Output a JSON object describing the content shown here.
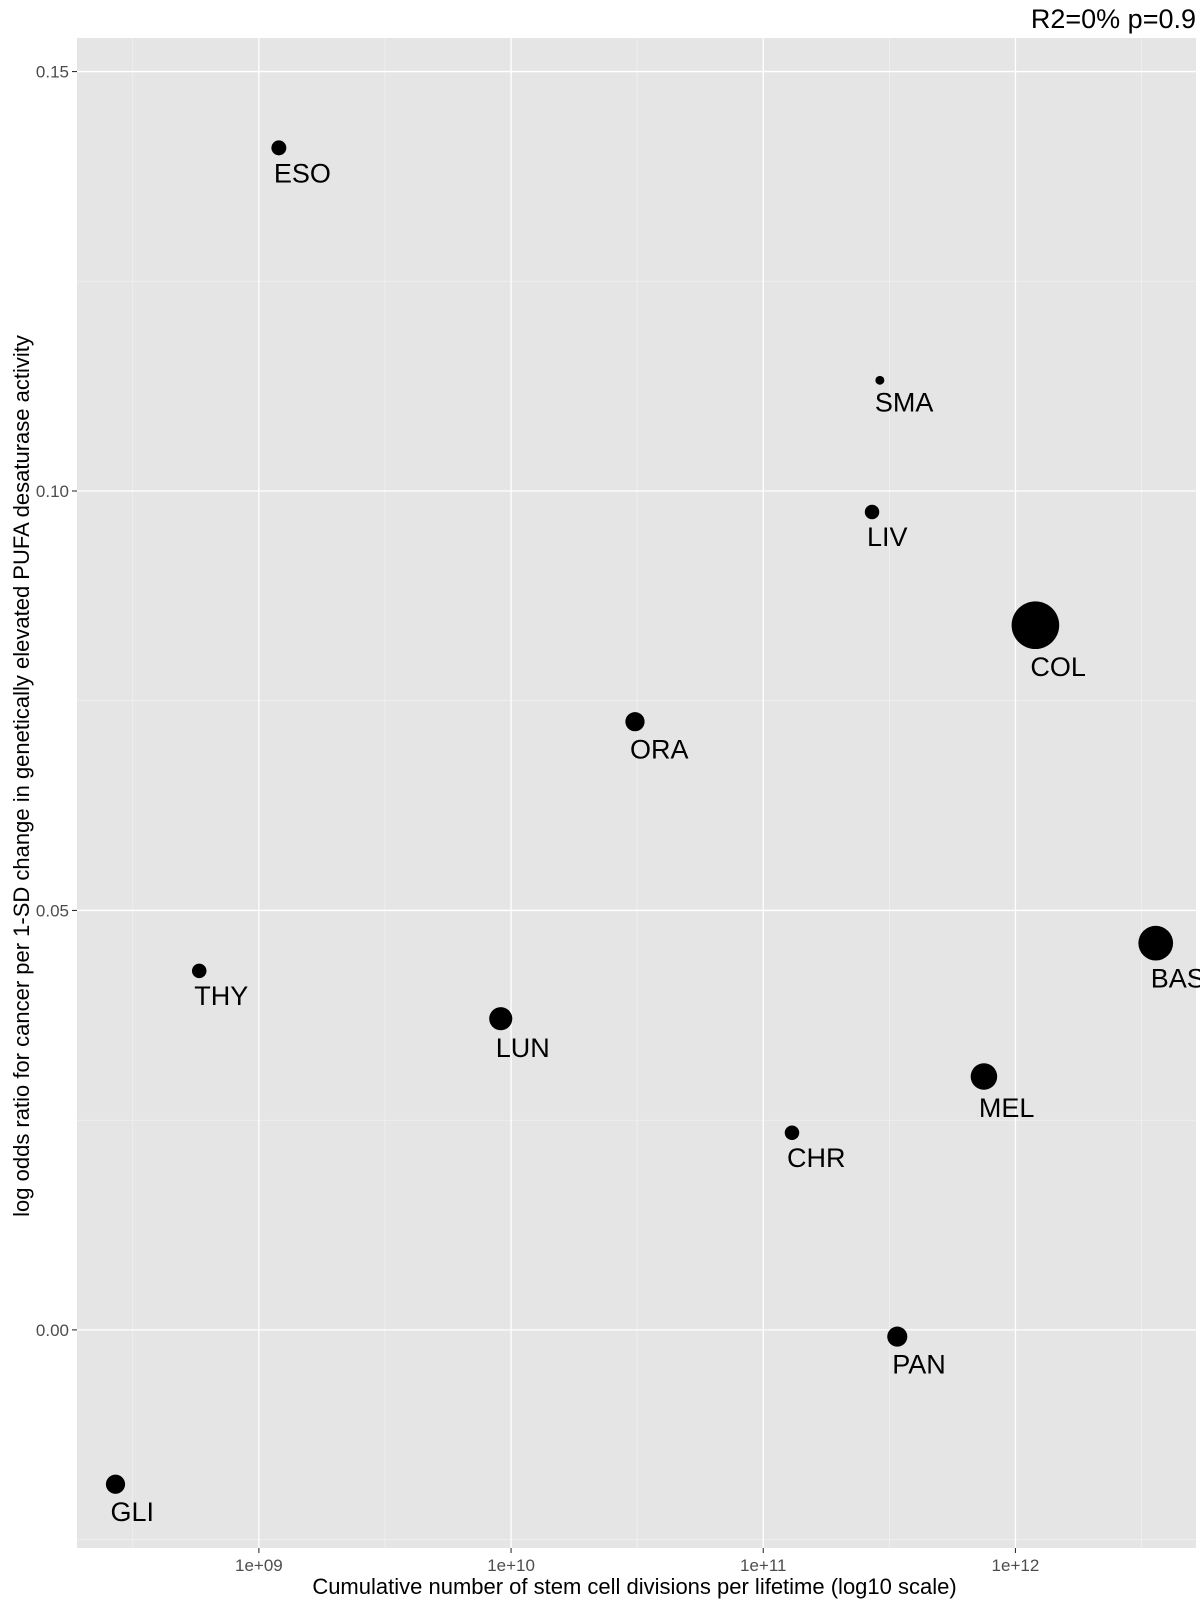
{
  "chart_data": {
    "type": "scatter",
    "title": "",
    "annotation": "R2=0% p=0.9",
    "xlabel": "Cumulative number of stem cell divisions per lifetime (log10 scale)",
    "ylabel": "log odds ratio for cancer per 1-SD change in genetically elevated PUFA desaturase activity",
    "x_scale": "log10",
    "xlim": [
      190000000,
      5200000000000
    ],
    "ylim": [
      -0.026,
      0.154
    ],
    "x_ticks": [
      1000000000,
      10000000000,
      100000000000,
      1000000000000
    ],
    "x_tick_labels": [
      "1e+09",
      "1e+10",
      "1e+11",
      "1e+12"
    ],
    "y_ticks": [
      0.0,
      0.05,
      0.1,
      0.15
    ],
    "y_tick_labels": [
      "0.00",
      "0.05",
      "0.10",
      "0.15"
    ],
    "grid": true,
    "legend": "none",
    "point_color": "#000000",
    "points": [
      {
        "label": "ESO",
        "x": 1200000000,
        "y": 0.1409,
        "size": 2.4
      },
      {
        "label": "SMA",
        "x": 290000000000,
        "y": 0.1132,
        "size": 1.0
      },
      {
        "label": "LIV",
        "x": 270000000000,
        "y": 0.0975,
        "size": 2.3
      },
      {
        "label": "COL",
        "x": 1200000000000,
        "y": 0.084,
        "size": 10.0
      },
      {
        "label": "ORA",
        "x": 31000000000,
        "y": 0.0725,
        "size": 3.4
      },
      {
        "label": "BAS",
        "x": 3600000000000,
        "y": 0.0461,
        "size": 7.0
      },
      {
        "label": "THY",
        "x": 580000000,
        "y": 0.0428,
        "size": 2.3
      },
      {
        "label": "LUN",
        "x": 9100000000,
        "y": 0.0371,
        "size": 4.3
      },
      {
        "label": "MEL",
        "x": 750000000000,
        "y": 0.0302,
        "size": 5.1
      },
      {
        "label": "CHR",
        "x": 130000000000,
        "y": 0.0235,
        "size": 2.3
      },
      {
        "label": "PAN",
        "x": 340000000000,
        "y": -0.0008,
        "size": 3.6
      },
      {
        "label": "GLI",
        "x": 270000000,
        "y": -0.0184,
        "size": 3.4
      }
    ]
  }
}
